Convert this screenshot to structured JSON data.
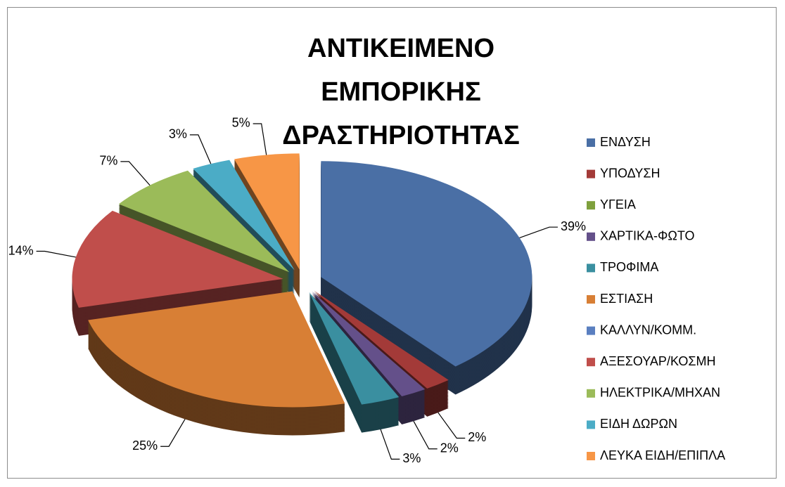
{
  "chart_data": {
    "type": "pie",
    "title": "ΑΝΤΙΚΕΙΜΕΝΟ ΕΜΠΟΡΙΚΗΣ ΔΡΑΣΤΗΡΙΟΤΗΤΑΣ",
    "categories": [
      "ΕΝΔΥΣΗ",
      "ΥΠΟΔΥΣΗ",
      "ΥΓΕΙΑ",
      "ΧΑΡΤΙΚΑ-ΦΩΤΟ",
      "ΤΡΟΦΙΜΑ",
      "ΕΣΤΙΑΣΗ",
      "ΚΑΛΛΥΝ/ΚΟΜΜ.",
      "ΑΞΕΣΟΥΑΡ/ΚΟΣΜΗ",
      "ΗΛΕΚΤΡΙΚΑ/ΜΗΧΑΝ",
      "ΕΙΔΗ ΔΩΡΩΝ",
      "ΛΕΥΚΑ ΕΙΔΗ/ΕΠΙΠΛΑ"
    ],
    "values": [
      39,
      2,
      0,
      2,
      3,
      25,
      0,
      14,
      7,
      3,
      5
    ],
    "value_labels": [
      "39%",
      "2%",
      null,
      "2%",
      "3%",
      "25%",
      null,
      "14%",
      "7%",
      "3%",
      "5%"
    ],
    "colors": [
      "#4a6fa5",
      "#a33a38",
      "#7ea03c",
      "#64508a",
      "#3a8fa0",
      "#d87f35",
      "#5a7fc0",
      "#c04e4b",
      "#9bbb59",
      "#4bacc6",
      "#f79646"
    ],
    "legend": "right"
  }
}
